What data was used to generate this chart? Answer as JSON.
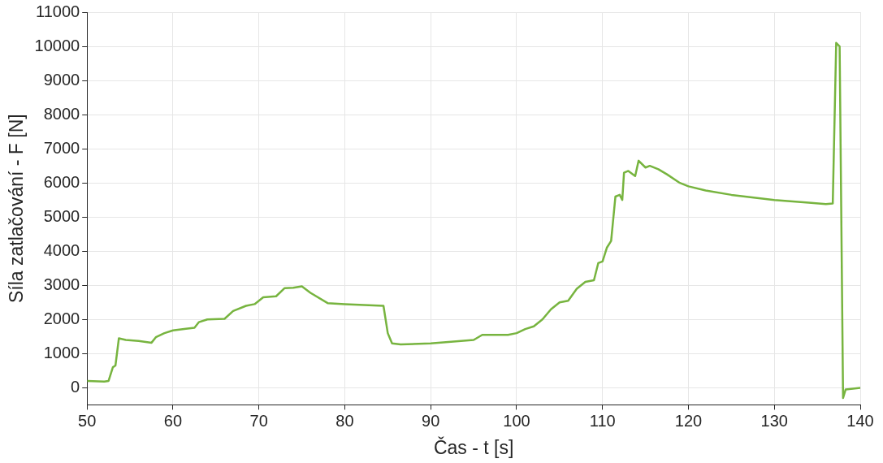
{
  "chart_data": {
    "type": "line",
    "xlabel": "Čas - t [s]",
    "ylabel": "Síla zatlačování - F [N]",
    "xlim": [
      50,
      140
    ],
    "xticks": [
      50,
      60,
      70,
      80,
      90,
      100,
      110,
      120,
      130,
      140
    ],
    "ylim": [
      -500,
      11000
    ],
    "yticks": [
      0,
      1000,
      2000,
      3000,
      4000,
      5000,
      6000,
      7000,
      8000,
      9000,
      10000,
      11000
    ],
    "grid": true,
    "legend": false,
    "marker": "none",
    "line_style": "solid",
    "series": [
      {
        "color": "#77b43f",
        "x": [
          50,
          52,
          52.5,
          53,
          53.3,
          53.7,
          54.5,
          56,
          57.5,
          58,
          59,
          60,
          61.5,
          62.5,
          63,
          64,
          66,
          67,
          68.5,
          69.5,
          70.5,
          72,
          73,
          74,
          75,
          76,
          78,
          80,
          84.5,
          85,
          85.2,
          85.5,
          86.5,
          90,
          95,
          96,
          99,
          100,
          101,
          102,
          103,
          104,
          105,
          106,
          107,
          108,
          109,
          109.5,
          110,
          110.5,
          111,
          111.5,
          112,
          112.3,
          112.5,
          113,
          113.8,
          114.2,
          115,
          115.5,
          116.5,
          117.5,
          119,
          120,
          122,
          125,
          130,
          134,
          136,
          136.8,
          137.2,
          137.6,
          138,
          138.3,
          140
        ],
        "values": [
          200,
          180,
          200,
          600,
          650,
          1450,
          1400,
          1370,
          1320,
          1480,
          1600,
          1680,
          1730,
          1760,
          1920,
          2000,
          2020,
          2250,
          2400,
          2450,
          2650,
          2680,
          2920,
          2930,
          2970,
          2780,
          2480,
          2450,
          2400,
          1600,
          1480,
          1300,
          1270,
          1300,
          1400,
          1550,
          1550,
          1600,
          1720,
          1800,
          2000,
          2300,
          2500,
          2550,
          2900,
          3100,
          3150,
          3650,
          3700,
          4100,
          4300,
          5600,
          5650,
          5500,
          6300,
          6350,
          6200,
          6650,
          6450,
          6500,
          6400,
          6250,
          6000,
          5900,
          5780,
          5650,
          5500,
          5420,
          5380,
          5400,
          10100,
          10000,
          -300,
          -50,
          0
        ]
      }
    ]
  }
}
